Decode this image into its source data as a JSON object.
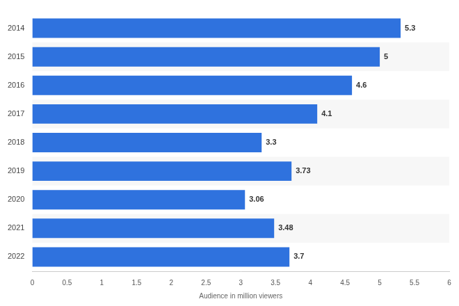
{
  "chart_data": {
    "type": "bar",
    "orientation": "horizontal",
    "categories": [
      "2014",
      "2015",
      "2016",
      "2017",
      "2018",
      "2019",
      "2020",
      "2021",
      "2022"
    ],
    "values": [
      5.3,
      5,
      4.6,
      4.1,
      3.3,
      3.73,
      3.06,
      3.48,
      3.7
    ],
    "color": "#2f72de",
    "x_label": "Audience in million viewers",
    "xlim": [
      0,
      6
    ],
    "xticks": [
      0,
      0.5,
      1,
      1.5,
      2,
      2.5,
      3,
      3.5,
      4,
      4.5,
      5,
      5.5,
      6
    ],
    "grid": false,
    "data_labels": true
  }
}
